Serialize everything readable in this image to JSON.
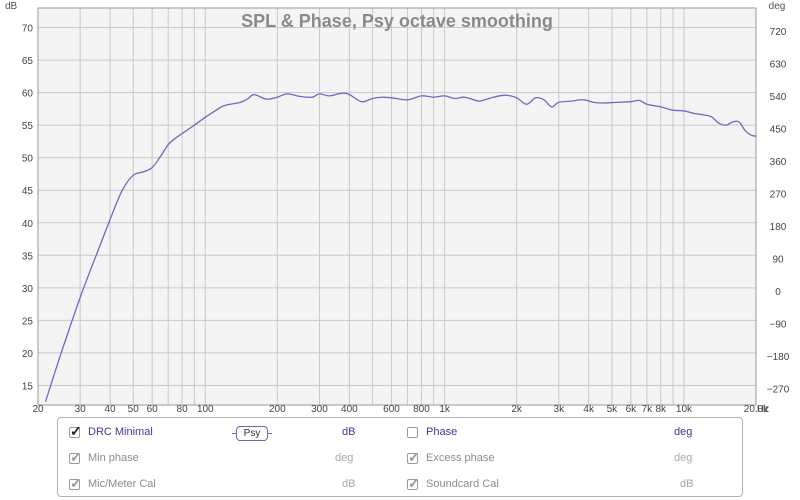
{
  "chart_data": {
    "type": "line",
    "title": "SPL & Phase, Psy octave smoothing",
    "y_left_unit": "dB",
    "y_right_unit": "deg",
    "x_unit": "Hz",
    "x_scale": "log",
    "xlim": [
      20,
      20000
    ],
    "ylim_left": [
      12,
      73
    ],
    "ylim_right": [
      -315,
      783
    ],
    "y_left_ticks": [
      15,
      20,
      25,
      30,
      35,
      40,
      45,
      50,
      55,
      60,
      65,
      70
    ],
    "y_right_ticks": [
      -270,
      -180,
      -90,
      0,
      90,
      180,
      270,
      360,
      450,
      540,
      630,
      720
    ],
    "y_right_tick_labels": [
      "−270",
      "−180",
      "−90",
      "0",
      "90",
      "180",
      "270",
      "360",
      "450",
      "540",
      "630",
      "720"
    ],
    "x_tick_labels": [
      {
        "v": 20,
        "t": "20"
      },
      {
        "v": 30,
        "t": "30"
      },
      {
        "v": 40,
        "t": "40"
      },
      {
        "v": 50,
        "t": "50"
      },
      {
        "v": 60,
        "t": "60"
      },
      {
        "v": 80,
        "t": "80"
      },
      {
        "v": 100,
        "t": "100"
      },
      {
        "v": 200,
        "t": "200"
      },
      {
        "v": 300,
        "t": "300"
      },
      {
        "v": 400,
        "t": "400"
      },
      {
        "v": 600,
        "t": "600"
      },
      {
        "v": 800,
        "t": "800"
      },
      {
        "v": 1000,
        "t": "1k"
      },
      {
        "v": 2000,
        "t": "2k"
      },
      {
        "v": 3000,
        "t": "3k"
      },
      {
        "v": 4000,
        "t": "4k"
      },
      {
        "v": 5000,
        "t": "5k"
      },
      {
        "v": 6000,
        "t": "6k"
      },
      {
        "v": 7000,
        "t": "7k"
      },
      {
        "v": 8000,
        "t": "8k"
      },
      {
        "v": 10000,
        "t": "10k"
      },
      {
        "v": 20000,
        "t": "20.0k"
      }
    ],
    "grid": true,
    "series": [
      {
        "name": "DRC Minimal",
        "color": "#6b6bc0",
        "points": [
          [
            21.5,
            12.5
          ],
          [
            25,
            20
          ],
          [
            30,
            28.5
          ],
          [
            35,
            35
          ],
          [
            40,
            40.5
          ],
          [
            45,
            45
          ],
          [
            50,
            47.3
          ],
          [
            55,
            47.8
          ],
          [
            60,
            48.5
          ],
          [
            65,
            50.2
          ],
          [
            70,
            52
          ],
          [
            75,
            53
          ],
          [
            80,
            53.7
          ],
          [
            90,
            55
          ],
          [
            100,
            56.2
          ],
          [
            110,
            57.2
          ],
          [
            120,
            58
          ],
          [
            140,
            58.5
          ],
          [
            150,
            59
          ],
          [
            160,
            59.7
          ],
          [
            180,
            59
          ],
          [
            200,
            59.3
          ],
          [
            220,
            59.8
          ],
          [
            250,
            59.4
          ],
          [
            280,
            59.3
          ],
          [
            300,
            59.8
          ],
          [
            330,
            59.5
          ],
          [
            370,
            59.9
          ],
          [
            400,
            59.7
          ],
          [
            450,
            58.6
          ],
          [
            500,
            59.1
          ],
          [
            550,
            59.3
          ],
          [
            600,
            59.2
          ],
          [
            700,
            58.9
          ],
          [
            800,
            59.5
          ],
          [
            900,
            59.3
          ],
          [
            1000,
            59.5
          ],
          [
            1100,
            59.1
          ],
          [
            1200,
            59.3
          ],
          [
            1300,
            59
          ],
          [
            1400,
            58.7
          ],
          [
            1600,
            59.3
          ],
          [
            1800,
            59.6
          ],
          [
            2000,
            59.2
          ],
          [
            2200,
            58.2
          ],
          [
            2400,
            59.2
          ],
          [
            2600,
            58.9
          ],
          [
            2800,
            57.8
          ],
          [
            3000,
            58.5
          ],
          [
            3400,
            58.7
          ],
          [
            3800,
            58.9
          ],
          [
            4200,
            58.5
          ],
          [
            4600,
            58.4
          ],
          [
            5200,
            58.5
          ],
          [
            6000,
            58.6
          ],
          [
            6500,
            58.8
          ],
          [
            7000,
            58.2
          ],
          [
            8000,
            57.8
          ],
          [
            9000,
            57.3
          ],
          [
            10000,
            57.2
          ],
          [
            11000,
            56.8
          ],
          [
            12000,
            56.6
          ],
          [
            13000,
            56.3
          ],
          [
            14000,
            55.3
          ],
          [
            15000,
            55
          ],
          [
            16000,
            55.5
          ],
          [
            17000,
            55.5
          ],
          [
            18000,
            54.2
          ],
          [
            19000,
            53.5
          ],
          [
            20000,
            53.3
          ]
        ]
      }
    ]
  },
  "legend": {
    "row1": {
      "left_label": "DRC Minimal",
      "button": "Psy",
      "left_unit": "dB",
      "right_label": "Phase",
      "right_unit": "deg"
    },
    "row2": {
      "left_label": "Min phase",
      "left_unit": "deg",
      "right_label": "Excess phase",
      "right_unit": "deg"
    },
    "row3": {
      "left_label": "Mic/Meter Cal",
      "left_unit": "dB",
      "right_label": "Soundcard Cal",
      "right_unit": "dB"
    }
  }
}
